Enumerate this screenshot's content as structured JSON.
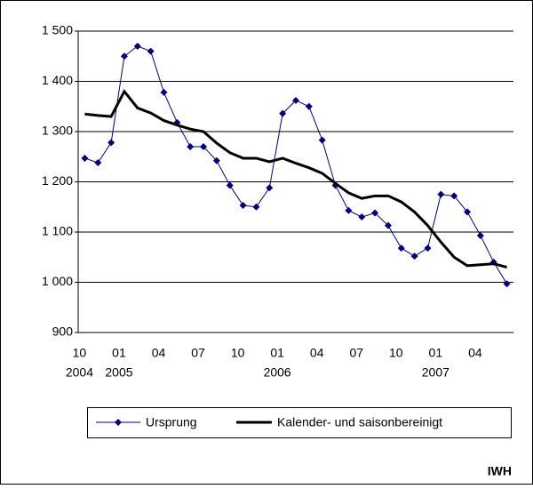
{
  "chart_data": {
    "type": "line",
    "categories": [
      "10",
      null,
      null,
      "01",
      null,
      null,
      "04",
      null,
      null,
      "07",
      null,
      null,
      "10",
      null,
      null,
      "01",
      null,
      null,
      "04",
      null,
      null,
      "07",
      null,
      null,
      "10",
      null,
      null,
      "01",
      null,
      null,
      "04",
      null,
      null
    ],
    "years": [
      "2004",
      null,
      null,
      "2005",
      null,
      null,
      null,
      null,
      null,
      null,
      null,
      null,
      null,
      null,
      null,
      "2006",
      null,
      null,
      null,
      null,
      null,
      null,
      null,
      null,
      null,
      null,
      null,
      "2007",
      null,
      null,
      null,
      null,
      null
    ],
    "series": [
      {
        "name": "Ursprung",
        "color": "#000080",
        "values": [
          1247,
          1238,
          1278,
          1450,
          1470,
          1460,
          1378,
          1318,
          1270,
          1270,
          1242,
          1193,
          1153,
          1150,
          1188,
          1336,
          1362,
          1350,
          1283,
          1193,
          1143,
          1130,
          1138,
          1113,
          1068,
          1052,
          1068,
          1175,
          1172,
          1140,
          1093,
          1040,
          997
        ]
      },
      {
        "name": "Kalender- und saisonbereinigt",
        "color": "#000000",
        "values": [
          1335,
          1332,
          1330,
          1380,
          1347,
          1337,
          1322,
          1313,
          1305,
          1300,
          1277,
          1258,
          1247,
          1247,
          1240,
          1247,
          1237,
          1228,
          1217,
          1197,
          1178,
          1167,
          1172,
          1172,
          1160,
          1140,
          1113,
          1080,
          1050,
          1033,
          1035,
          1037,
          1030
        ]
      }
    ],
    "ylim": [
      900,
      1500
    ],
    "yticks": [
      900,
      {
        "value": 1000,
        "label": "1 000"
      },
      {
        "value": 1100,
        "label": "1 100"
      },
      {
        "value": 1200,
        "label": "1 200"
      },
      {
        "value": 1300,
        "label": "1 300"
      },
      {
        "value": 1400,
        "label": "1 400"
      },
      {
        "value": 1500,
        "label": "1 500"
      }
    ],
    "grid": true,
    "source": "IWH"
  }
}
